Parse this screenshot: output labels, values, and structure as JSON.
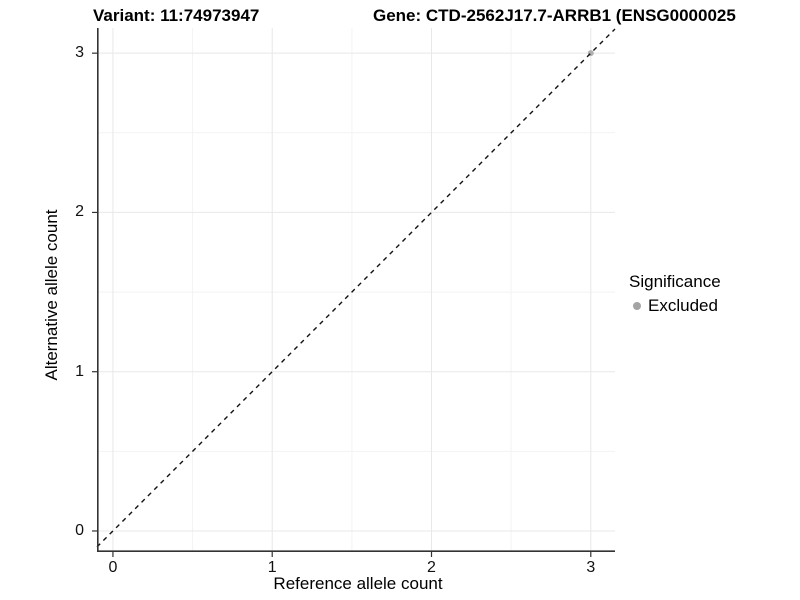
{
  "titles": {
    "variant": "Variant: 11:74973947",
    "gene": "Gene: CTD-2562J17.7-ARRB1 (ENSG0000025"
  },
  "legend": {
    "title": "Significance",
    "items": [
      {
        "label": "Excluded",
        "color": "#a4a4a4"
      }
    ]
  },
  "chart_data": {
    "type": "scatter",
    "title_left": "Variant: 11:74973947",
    "title_right": "Gene: CTD-2562J17.7-ARRB1 (ENSG0000025",
    "xlabel": "Reference allele count",
    "ylabel": "Alternative allele count",
    "xlim": [
      -0.1,
      3.152
    ],
    "ylim": [
      -0.132,
      3.158
    ],
    "x_ticks": [
      0,
      1,
      2,
      3
    ],
    "y_ticks": [
      0,
      1,
      2,
      3
    ],
    "x_minor_ticks": [
      0.5,
      1.5,
      2.5
    ],
    "y_minor_ticks": [
      0.5,
      1.5,
      2.5
    ],
    "grid": {
      "major": true,
      "minor": true
    },
    "legend_title": "Significance",
    "legend_position": "right",
    "reference_line": {
      "type": "abline",
      "slope": 1,
      "intercept": 0,
      "style": "dashed",
      "color": "#111111"
    },
    "series": [
      {
        "name": "Excluded",
        "color": "#a9a9a9",
        "points": [
          {
            "x": 3,
            "y": 3
          }
        ]
      }
    ],
    "colors": {
      "grid_major": "#e8e8e8",
      "grid_minor": "#f3f3f3",
      "axis_line": "#333333",
      "tick_mark": "#333333"
    }
  }
}
